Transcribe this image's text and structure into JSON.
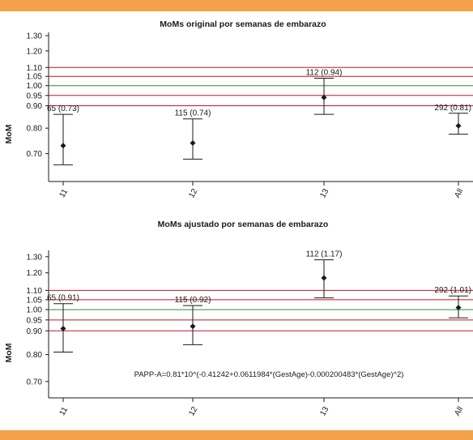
{
  "colors": {
    "band": "#f3a14a",
    "ref_red": "#c8102e",
    "ref_green": "#2e8b3d",
    "ink": "#1a1a1a"
  },
  "chart_data": [
    {
      "type": "errorbar",
      "title": "MoMs original por semanas de embarazo",
      "ylabel": "MoM",
      "yscale": "log",
      "ylim": [
        0.65,
        1.3
      ],
      "yticks": [
        "1.30",
        "1.20",
        "1.10",
        "1.05",
        "1.00",
        "0.95",
        "0.90",
        "0.80",
        "0.70"
      ],
      "categories": [
        "11",
        "12",
        "13",
        "All"
      ],
      "points": [
        {
          "category": "11",
          "n": 65,
          "mean": 0.73,
          "low": 0.66,
          "high": 0.86,
          "label": "65 (0.73)"
        },
        {
          "category": "12",
          "n": 115,
          "mean": 0.74,
          "low": 0.68,
          "high": 0.84,
          "label": "115 (0.74)"
        },
        {
          "category": "13",
          "n": 112,
          "mean": 0.94,
          "low": 0.86,
          "high": 1.04,
          "label": "112 (0.94)"
        },
        {
          "category": "All",
          "n": 292,
          "mean": 0.81,
          "low": 0.775,
          "high": 0.865,
          "label": "292 (0.81)"
        }
      ],
      "reference_lines": [
        {
          "y": 1.1,
          "color": "red"
        },
        {
          "y": 1.05,
          "color": "red"
        },
        {
          "y": 1.0,
          "color": "green"
        },
        {
          "y": 0.95,
          "color": "red"
        },
        {
          "y": 0.9,
          "color": "red"
        }
      ],
      "annotation": ""
    },
    {
      "type": "errorbar",
      "title": "MoMs ajustado por semanas de embarazo",
      "ylabel": "MoM",
      "yscale": "log",
      "ylim": [
        0.68,
        1.32
      ],
      "yticks": [
        "1.30",
        "1.20",
        "1.10",
        "1.05",
        "1.00",
        "0.95",
        "0.90",
        "0.80",
        "0.70"
      ],
      "categories": [
        "11",
        "12",
        "13",
        "All"
      ],
      "points": [
        {
          "category": "11",
          "n": 65,
          "mean": 0.91,
          "low": 0.81,
          "high": 1.03,
          "label": "65 (0.91)"
        },
        {
          "category": "12",
          "n": 115,
          "mean": 0.92,
          "low": 0.84,
          "high": 1.02,
          "label": "115 (0.92)"
        },
        {
          "category": "13",
          "n": 112,
          "mean": 1.17,
          "low": 1.06,
          "high": 1.28,
          "label": "112 (1.17)"
        },
        {
          "category": "All",
          "n": 292,
          "mean": 1.01,
          "low": 0.96,
          "high": 1.07,
          "label": "292 (1.01)"
        }
      ],
      "reference_lines": [
        {
          "y": 1.1,
          "color": "red"
        },
        {
          "y": 1.05,
          "color": "red"
        },
        {
          "y": 1.0,
          "color": "green"
        },
        {
          "y": 0.95,
          "color": "red"
        },
        {
          "y": 0.9,
          "color": "red"
        }
      ],
      "annotation": "PAPP-A=0.81*10^(-0.41242+0.0611984*(GestAge)-0.000200483*(GestAge)^2)"
    }
  ]
}
